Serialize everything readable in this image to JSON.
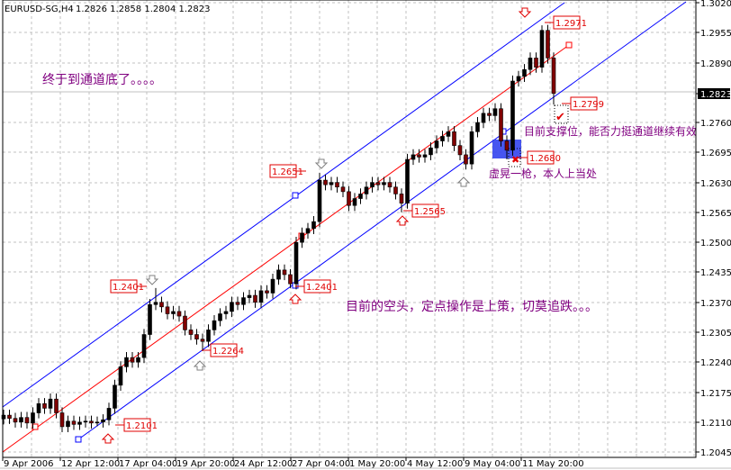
{
  "chart_data": {
    "type": "candlestick",
    "title": "EURUSD-SG,H4",
    "ohlc_header": "1.2826 1.2858 1.2804 1.2823",
    "symbol": "EURUSD-SG",
    "timeframe": "H4",
    "current_price": "1.2823",
    "ylim": [
      1.2045,
      1.302
    ],
    "y_ticks": [
      "1.3020",
      "1.2955",
      "1.2890",
      "1.2823",
      "1.2760",
      "1.2695",
      "1.2630",
      "1.2565",
      "1.2500",
      "1.2435",
      "1.2370",
      "1.2305",
      "1.2240",
      "1.2175",
      "1.2110",
      "1.2045"
    ],
    "x_ticks": [
      "9 Apr 2006",
      "12 Apr 12:00",
      "17 Apr 04:00",
      "19 Apr 20:00",
      "24 Apr 12:00",
      "27 Apr 04:00",
      "1 May 20:00",
      "4 May 12:00",
      "9 May 04:00",
      "11 May 20:00"
    ],
    "grid": true,
    "closes": [
      1.2125,
      1.2118,
      1.211,
      1.212,
      1.2108,
      1.213,
      1.215,
      1.214,
      1.216,
      1.213,
      1.21,
      1.2112,
      1.2105,
      1.211,
      1.2112,
      1.2108,
      1.211,
      1.2115,
      1.214,
      1.219,
      1.223,
      1.225,
      1.224,
      1.225,
      1.23,
      1.2365,
      1.237,
      1.236,
      1.2345,
      1.235,
      1.234,
      1.231,
      1.23,
      1.229,
      1.2285,
      1.231,
      1.233,
      1.2345,
      1.235,
      1.237,
      1.2365,
      1.238,
      1.2385,
      1.237,
      1.2395,
      1.239,
      1.242,
      1.244,
      1.243,
      1.241,
      1.25,
      1.252,
      1.253,
      1.2545,
      1.2635,
      1.2625,
      1.263,
      1.262,
      1.261,
      1.258,
      1.2595,
      1.2605,
      1.262,
      1.263,
      1.2625,
      1.263,
      1.262,
      1.2605,
      1.2585,
      1.268,
      1.269,
      1.2685,
      1.269,
      1.2705,
      1.272,
      1.273,
      1.274,
      1.271,
      1.269,
      1.267,
      1.274,
      1.276,
      1.278,
      1.2775,
      1.279,
      1.272,
      1.27,
      1.285,
      1.286,
      1.2875,
      1.29,
      1.288,
      1.296,
      1.29,
      1.2823
    ],
    "price_labels": [
      {
        "text": "1.2971",
        "type": "high"
      },
      {
        "text": "1.2799",
        "type": "low"
      },
      {
        "text": "1.2680",
        "type": "low"
      },
      {
        "text": "1.2651",
        "type": "high"
      },
      {
        "text": "1.2565",
        "type": "low"
      },
      {
        "text": "1.2401",
        "type": "low"
      },
      {
        "text": "1.2401",
        "type": "high"
      },
      {
        "text": "1.2264",
        "type": "low"
      },
      {
        "text": "1.2101",
        "type": "low"
      }
    ],
    "annotations": [
      "终于到通道底了。。。。",
      "目前支撑位，能否力挺通道继续有效",
      "虚晃一枪，本人上当处",
      "目前的空头，定点操作是上策，切莫追跌。。。"
    ],
    "colors": {
      "bull": "#000000",
      "bear": "#800000",
      "wick": "#000000",
      "channel": "#0000ff",
      "midline": "#ff0000",
      "label": "#e00000",
      "note": "#800080",
      "grid": "#c0c0c0",
      "zone": "#3344ee"
    }
  }
}
